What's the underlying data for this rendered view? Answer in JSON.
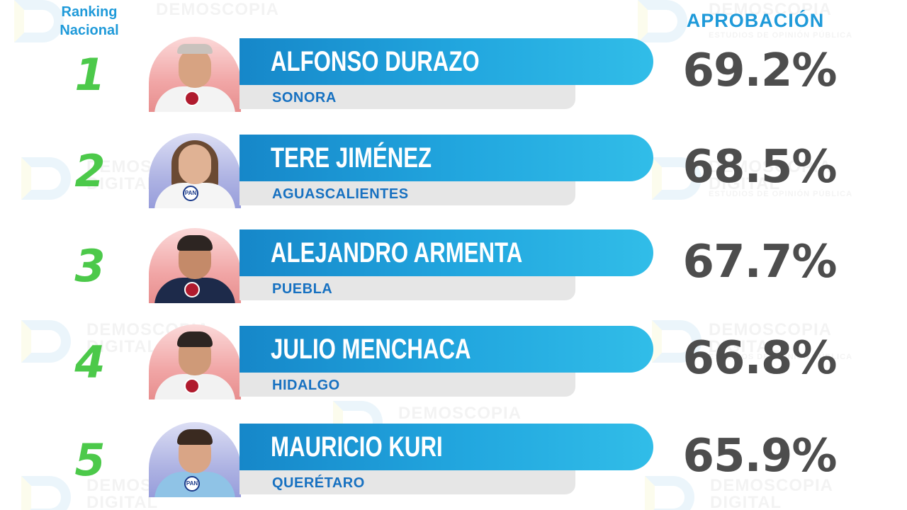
{
  "header": {
    "ranking_label": "Ranking Nacional",
    "approval_label": "APROBACIÓN"
  },
  "watermark": {
    "line1": "DEMOSCOPIA",
    "line2": "DIGITAL",
    "tagline": "ESTUDIOS DE OPINIÓN PÚBLICA"
  },
  "colors": {
    "accent_blue": "#1f9ad9",
    "rank_green": "#4cc94a",
    "percent_gray": "#4d4d4d",
    "state_blue": "#1771c1"
  },
  "rankings": [
    {
      "rank": "1",
      "name": "ALFONSO DURAZO",
      "state": "SONORA",
      "approval": "69.2%",
      "party_badge": "morena-badge"
    },
    {
      "rank": "2",
      "name": "TERE JIMÉNEZ",
      "state": "AGUASCALIENTES",
      "approval": "68.5%",
      "party_badge": "pan-badge"
    },
    {
      "rank": "3",
      "name": "ALEJANDRO ARMENTA",
      "state": "PUEBLA",
      "approval": "67.7%",
      "party_badge": "morena-badge"
    },
    {
      "rank": "4",
      "name": "JULIO MENCHACA",
      "state": "HIDALGO",
      "approval": "66.8%",
      "party_badge": "morena-badge"
    },
    {
      "rank": "5",
      "name": "MAURICIO KURI",
      "state": "QUERÉTARO",
      "approval": "65.9%",
      "party_badge": "pan-badge"
    }
  ]
}
